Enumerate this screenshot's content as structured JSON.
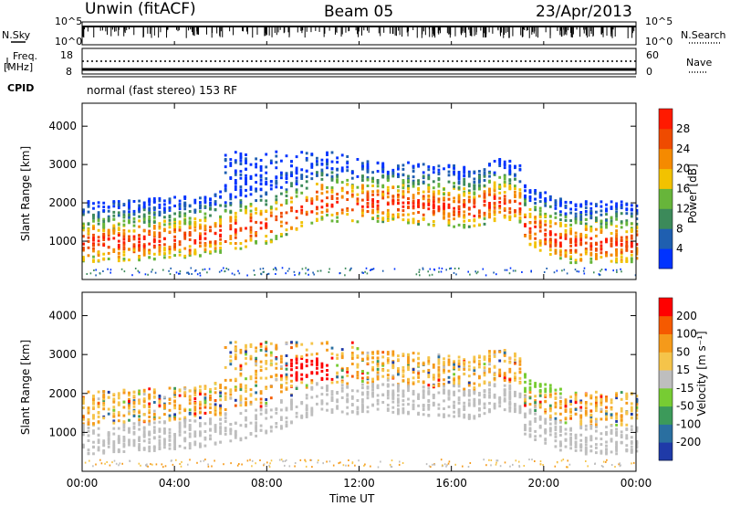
{
  "header": {
    "station": "Unwin (fitACF)",
    "beam": "Beam 05",
    "date": "23/Apr/2013"
  },
  "panels": {
    "nsky_label": "N.Sky",
    "nsky_ticks": [
      "10^5",
      "10^0"
    ],
    "nsearch_label": "N.Search",
    "nsearch_ticks": [
      "10^5",
      "10^0"
    ],
    "freq_label": "Freq.",
    "freq_unit": "[MHz]",
    "freq_ticks": [
      "18",
      "8"
    ],
    "nave_label": "Nave",
    "nave_ticks": [
      "60",
      "0"
    ],
    "cpid_label": "CPID",
    "cpid_text": "normal (fast stereo) 153 RF"
  },
  "colors": {
    "power_low": "#0000ff",
    "power_high": "#ff0000",
    "velocity_neg": "#ff0000",
    "velocity_pos": "#0000cc",
    "ground_scatter": "#bebebe"
  },
  "chart_data": [
    {
      "type": "heatmap",
      "ylabel": "Slant Range [km]",
      "xlabel": "Time UT",
      "x_ticks": [
        "00:00",
        "04:00",
        "08:00",
        "12:00",
        "16:00",
        "20:00",
        "00:00"
      ],
      "y_ticks": [
        "1000",
        "2000",
        "3000",
        "4000"
      ],
      "ylim": [
        0,
        4600
      ],
      "colorbar_label": "Power [dB]",
      "colorbar_ticks": [
        "4",
        "8",
        "12",
        "16",
        "20",
        "24",
        "28"
      ],
      "colorbar_colors": [
        "#0033ff",
        "#1f5fb0",
        "#3c8a5a",
        "#67b53a",
        "#f2c200",
        "#f58a00",
        "#ef4b00",
        "#ff1a00"
      ]
    },
    {
      "type": "heatmap",
      "ylabel": "Slant Range [km]",
      "xlabel": "Time UT",
      "x_ticks": [
        "00:00",
        "04:00",
        "08:00",
        "12:00",
        "16:00",
        "20:00",
        "00:00"
      ],
      "y_ticks": [
        "1000",
        "2000",
        "3000",
        "4000"
      ],
      "ylim": [
        0,
        4600
      ],
      "colorbar_label": "Velocity [m s⁻¹]",
      "colorbar_ticks": [
        "200",
        "100",
        "50",
        "15",
        "-15",
        "-50",
        "-100",
        "-200"
      ],
      "colorbar_colors": [
        "#1f3aa8",
        "#2a6fa0",
        "#3c9a5a",
        "#77cc33",
        "#bebebe",
        "#f5c44a",
        "#f59a1a",
        "#f55a00",
        "#ff0000"
      ]
    }
  ]
}
